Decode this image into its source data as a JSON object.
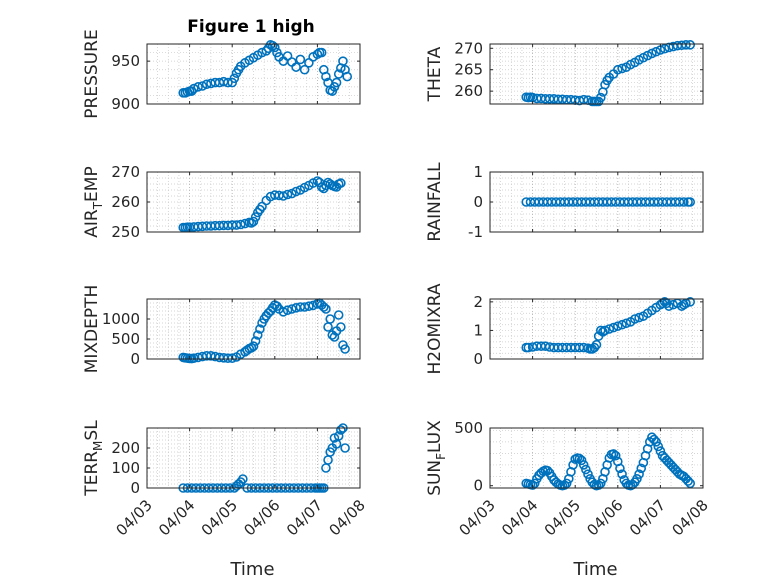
{
  "figure": {
    "title": "Figure 1 high",
    "marker_color": "#0072BD"
  },
  "chart_data": [
    {
      "type": "scatter",
      "name": "pressure",
      "ylabel": "PRESSURE",
      "ylim": [
        900,
        970
      ],
      "yticks": [
        "900",
        "950"
      ],
      "ytick_values": [
        900,
        950
      ],
      "x": [
        3.85,
        3.9,
        3.95,
        4.0,
        4.05,
        4.1,
        4.2,
        4.3,
        4.4,
        4.5,
        4.6,
        4.7,
        4.8,
        4.9,
        5.0,
        5.05,
        5.1,
        5.15,
        5.2,
        5.3,
        5.4,
        5.5,
        5.6,
        5.7,
        5.8,
        5.85,
        5.9,
        5.95,
        6.0,
        6.05,
        6.1,
        6.2,
        6.3,
        6.4,
        6.5,
        6.6,
        6.7,
        6.8,
        6.9,
        7.0,
        7.05,
        7.1,
        7.15,
        7.2,
        7.25,
        7.3,
        7.35,
        7.4,
        7.45,
        7.5,
        7.55,
        7.6,
        7.65,
        7.7
      ],
      "y": [
        913,
        913,
        914,
        915,
        915,
        918,
        920,
        921,
        923,
        924,
        925,
        925,
        926,
        925,
        925,
        930,
        936,
        940,
        944,
        948,
        951,
        954,
        957,
        960,
        962,
        965,
        969,
        968,
        966,
        960,
        955,
        950,
        956,
        949,
        943,
        952,
        940,
        948,
        955,
        958,
        960,
        960,
        940,
        932,
        925,
        916,
        915,
        920,
        925,
        935,
        942,
        950,
        940,
        932
      ]
    },
    {
      "type": "scatter",
      "name": "theta",
      "ylabel": "THETA",
      "ylim": [
        257,
        271
      ],
      "yticks": [
        "260",
        "265",
        "270"
      ],
      "ytick_values": [
        260,
        265,
        270
      ],
      "x": [
        3.85,
        3.9,
        3.95,
        4.0,
        4.1,
        4.2,
        4.3,
        4.4,
        4.5,
        4.6,
        4.7,
        4.8,
        4.9,
        5.0,
        5.1,
        5.2,
        5.3,
        5.4,
        5.45,
        5.5,
        5.55,
        5.6,
        5.65,
        5.7,
        5.75,
        5.8,
        5.9,
        6.0,
        6.1,
        6.2,
        6.3,
        6.4,
        6.5,
        6.6,
        6.7,
        6.8,
        6.9,
        7.0,
        7.1,
        7.2,
        7.3,
        7.4,
        7.5,
        7.6,
        7.7
      ],
      "y": [
        258.6,
        258.5,
        258.6,
        258.5,
        258.3,
        258.3,
        258.2,
        258.2,
        258.2,
        258.1,
        258.1,
        258.0,
        258.0,
        257.9,
        257.8,
        258.0,
        257.9,
        257.6,
        257.6,
        257.6,
        257.6,
        258.5,
        259.8,
        261.5,
        262.5,
        263.2,
        264.0,
        265.0,
        265.3,
        265.6,
        266.2,
        266.7,
        267.3,
        267.8,
        268.3,
        268.8,
        269.2,
        269.6,
        269.9,
        270.2,
        270.4,
        270.6,
        270.7,
        270.8,
        270.8
      ]
    },
    {
      "type": "scatter",
      "name": "air_temp",
      "ylabel_main": "AIR",
      "ylabel_sub": "T",
      "ylabel_rest": "EMP",
      "ylim": [
        250,
        270
      ],
      "yticks": [
        "250",
        "260",
        "270"
      ],
      "ytick_values": [
        250,
        260,
        270
      ],
      "x": [
        3.85,
        3.9,
        3.95,
        4.0,
        4.1,
        4.2,
        4.3,
        4.4,
        4.5,
        4.6,
        4.7,
        4.8,
        4.9,
        5.0,
        5.1,
        5.2,
        5.3,
        5.4,
        5.45,
        5.5,
        5.55,
        5.6,
        5.65,
        5.7,
        5.8,
        5.9,
        6.0,
        6.1,
        6.2,
        6.3,
        6.4,
        6.5,
        6.6,
        6.7,
        6.8,
        6.9,
        7.0,
        7.05,
        7.1,
        7.15,
        7.2,
        7.25,
        7.3,
        7.35,
        7.4,
        7.45,
        7.5,
        7.55
      ],
      "y": [
        251.5,
        251.5,
        251.6,
        251.6,
        251.7,
        251.8,
        251.9,
        252.0,
        252.0,
        252.1,
        252.1,
        252.2,
        252.2,
        252.3,
        252.3,
        252.5,
        252.8,
        253.2,
        253.0,
        253.5,
        255.0,
        256.5,
        257.5,
        258.5,
        260.5,
        261.8,
        262.3,
        262.2,
        262.0,
        262.5,
        262.8,
        263.5,
        264.0,
        264.8,
        265.5,
        266.3,
        267.0,
        266.5,
        265.0,
        264.5,
        265.5,
        266.5,
        266.0,
        265.5,
        265.2,
        265.0,
        266.0,
        266.3
      ]
    },
    {
      "type": "scatter",
      "name": "rainfall",
      "ylabel": "RAINFALL",
      "ylim": [
        -1,
        1
      ],
      "yticks": [
        "-1",
        "0",
        "1"
      ],
      "ytick_values": [
        -1,
        0,
        1
      ],
      "x": [
        3.85,
        3.95,
        4.05,
        4.15,
        4.25,
        4.35,
        4.45,
        4.55,
        4.65,
        4.75,
        4.85,
        4.95,
        5.05,
        5.15,
        5.25,
        5.35,
        5.45,
        5.55,
        5.65,
        5.75,
        5.85,
        5.95,
        6.05,
        6.15,
        6.25,
        6.35,
        6.45,
        6.55,
        6.65,
        6.75,
        6.85,
        6.95,
        7.05,
        7.15,
        7.25,
        7.35,
        7.45,
        7.55,
        7.65,
        7.7
      ],
      "y": [
        0,
        0,
        0,
        0,
        0,
        0,
        0,
        0,
        0,
        0,
        0,
        0,
        0,
        0,
        0,
        0,
        0,
        0,
        0,
        0,
        0,
        0,
        0,
        0,
        0,
        0,
        0,
        0,
        0,
        0,
        0,
        0,
        0,
        0,
        0,
        0,
        0,
        0,
        0,
        0
      ]
    },
    {
      "type": "scatter",
      "name": "mixdepth",
      "ylabel": "MIXDEPTH",
      "ylim": [
        0,
        1500
      ],
      "yticks": [
        "0",
        "500",
        "1000"
      ],
      "ytick_values": [
        0,
        500,
        1000
      ],
      "x": [
        3.85,
        3.9,
        3.95,
        4.0,
        4.05,
        4.1,
        4.2,
        4.3,
        4.4,
        4.5,
        4.6,
        4.7,
        4.8,
        4.9,
        5.0,
        5.1,
        5.2,
        5.3,
        5.35,
        5.4,
        5.45,
        5.5,
        5.55,
        5.6,
        5.65,
        5.7,
        5.75,
        5.8,
        5.85,
        5.9,
        5.95,
        6.0,
        6.05,
        6.1,
        6.2,
        6.3,
        6.4,
        6.5,
        6.6,
        6.7,
        6.8,
        6.9,
        7.0,
        7.05,
        7.1,
        7.15,
        7.2,
        7.25,
        7.3,
        7.35,
        7.4,
        7.45,
        7.5,
        7.55,
        7.6,
        7.65
      ],
      "y": [
        40,
        30,
        20,
        15,
        10,
        20,
        40,
        60,
        80,
        80,
        60,
        40,
        30,
        20,
        20,
        50,
        120,
        180,
        220,
        260,
        280,
        320,
        450,
        600,
        750,
        900,
        1000,
        1080,
        1150,
        1200,
        1280,
        1350,
        1320,
        1250,
        1180,
        1220,
        1250,
        1280,
        1300,
        1300,
        1320,
        1340,
        1380,
        1400,
        1350,
        1300,
        1250,
        800,
        1000,
        600,
        550,
        700,
        1100,
        800,
        350,
        250
      ]
    },
    {
      "type": "scatter",
      "name": "h2omixra",
      "ylabel": "H2OMIXRA",
      "ylim": [
        0,
        2.1
      ],
      "yticks": [
        "0",
        "1",
        "2"
      ],
      "ytick_values": [
        0,
        1,
        2
      ],
      "x": [
        3.85,
        3.9,
        4.0,
        4.1,
        4.2,
        4.3,
        4.4,
        4.5,
        4.6,
        4.7,
        4.8,
        4.9,
        5.0,
        5.1,
        5.2,
        5.3,
        5.35,
        5.4,
        5.45,
        5.5,
        5.55,
        5.6,
        5.65,
        5.7,
        5.8,
        5.9,
        6.0,
        6.1,
        6.2,
        6.3,
        6.4,
        6.5,
        6.6,
        6.7,
        6.8,
        6.9,
        7.0,
        7.05,
        7.1,
        7.15,
        7.2,
        7.3,
        7.4,
        7.5,
        7.55,
        7.6,
        7.7
      ],
      "y": [
        0.4,
        0.4,
        0.42,
        0.45,
        0.45,
        0.45,
        0.42,
        0.4,
        0.4,
        0.4,
        0.4,
        0.4,
        0.4,
        0.4,
        0.4,
        0.38,
        0.35,
        0.35,
        0.4,
        0.5,
        0.8,
        1.0,
        0.95,
        1.0,
        1.05,
        1.1,
        1.15,
        1.2,
        1.25,
        1.3,
        1.4,
        1.45,
        1.5,
        1.6,
        1.7,
        1.8,
        1.9,
        1.95,
        2.0,
        1.95,
        1.85,
        1.9,
        1.95,
        1.85,
        1.9,
        1.95,
        2.0
      ]
    },
    {
      "type": "scatter",
      "name": "terr_msl",
      "ylabel_main": "TERR",
      "ylabel_sub": "M",
      "ylabel_rest": "SL",
      "ylim": [
        0,
        300
      ],
      "yticks": [
        "0",
        "100",
        "200"
      ],
      "ytick_values": [
        0,
        100,
        200
      ],
      "x": [
        3.85,
        3.95,
        4.05,
        4.15,
        4.25,
        4.35,
        4.45,
        4.55,
        4.65,
        4.75,
        4.85,
        4.95,
        5.05,
        5.1,
        5.15,
        5.2,
        5.25,
        5.35,
        5.45,
        5.55,
        5.65,
        5.75,
        5.85,
        5.95,
        6.05,
        6.15,
        6.25,
        6.35,
        6.45,
        6.55,
        6.65,
        6.75,
        6.85,
        6.95,
        7.0,
        7.05,
        7.1,
        7.15,
        7.2,
        7.25,
        7.3,
        7.35,
        7.4,
        7.45,
        7.5,
        7.55,
        7.6,
        7.65
      ],
      "y": [
        0,
        0,
        0,
        0,
        0,
        0,
        0,
        0,
        0,
        0,
        0,
        0,
        0,
        10,
        20,
        30,
        45,
        0,
        0,
        0,
        0,
        0,
        0,
        0,
        0,
        0,
        0,
        0,
        0,
        0,
        0,
        0,
        0,
        0,
        0,
        0,
        0,
        0,
        100,
        140,
        180,
        200,
        250,
        220,
        260,
        290,
        300,
        200
      ]
    },
    {
      "type": "scatter",
      "name": "sun_flux",
      "ylabel_main": "SUN",
      "ylabel_sub": "F",
      "ylabel_rest": "LUX",
      "ylim": [
        -20,
        500
      ],
      "yticks": [
        "0",
        "500"
      ],
      "ytick_values": [
        0,
        500
      ],
      "x": [
        3.85,
        3.9,
        3.95,
        4.0,
        4.05,
        4.1,
        4.15,
        4.2,
        4.25,
        4.3,
        4.35,
        4.4,
        4.45,
        4.5,
        4.55,
        4.6,
        4.65,
        4.7,
        4.75,
        4.8,
        4.85,
        4.9,
        4.95,
        5.0,
        5.05,
        5.1,
        5.15,
        5.2,
        5.25,
        5.3,
        5.35,
        5.4,
        5.45,
        5.5,
        5.55,
        5.6,
        5.65,
        5.7,
        5.75,
        5.8,
        5.85,
        5.9,
        5.95,
        6.0,
        6.05,
        6.1,
        6.15,
        6.2,
        6.25,
        6.3,
        6.35,
        6.4,
        6.45,
        6.5,
        6.55,
        6.6,
        6.65,
        6.7,
        6.75,
        6.8,
        6.85,
        6.9,
        6.95,
        7.0,
        7.05,
        7.1,
        7.15,
        7.2,
        7.25,
        7.3,
        7.35,
        7.4,
        7.45,
        7.5,
        7.55,
        7.6,
        7.65,
        7.7
      ],
      "y": [
        20,
        15,
        10,
        5,
        20,
        60,
        90,
        110,
        125,
        135,
        130,
        110,
        80,
        50,
        30,
        15,
        5,
        0,
        5,
        20,
        60,
        120,
        180,
        230,
        240,
        235,
        220,
        180,
        140,
        100,
        60,
        30,
        10,
        0,
        5,
        20,
        60,
        120,
        180,
        240,
        270,
        275,
        260,
        210,
        150,
        100,
        50,
        20,
        5,
        0,
        10,
        30,
        60,
        100,
        150,
        200,
        260,
        320,
        380,
        420,
        400,
        380,
        340,
        300,
        260,
        240,
        220,
        200,
        180,
        160,
        140,
        120,
        100,
        90,
        80,
        60,
        40,
        20
      ]
    }
  ],
  "x_axis": {
    "xlim": [
      3,
      8
    ],
    "ticks": [
      3,
      4,
      5,
      6,
      7,
      8
    ],
    "tick_labels": [
      "04/03",
      "04/04",
      "04/05",
      "04/06",
      "04/07",
      "04/08"
    ],
    "xlabel": "Time"
  }
}
